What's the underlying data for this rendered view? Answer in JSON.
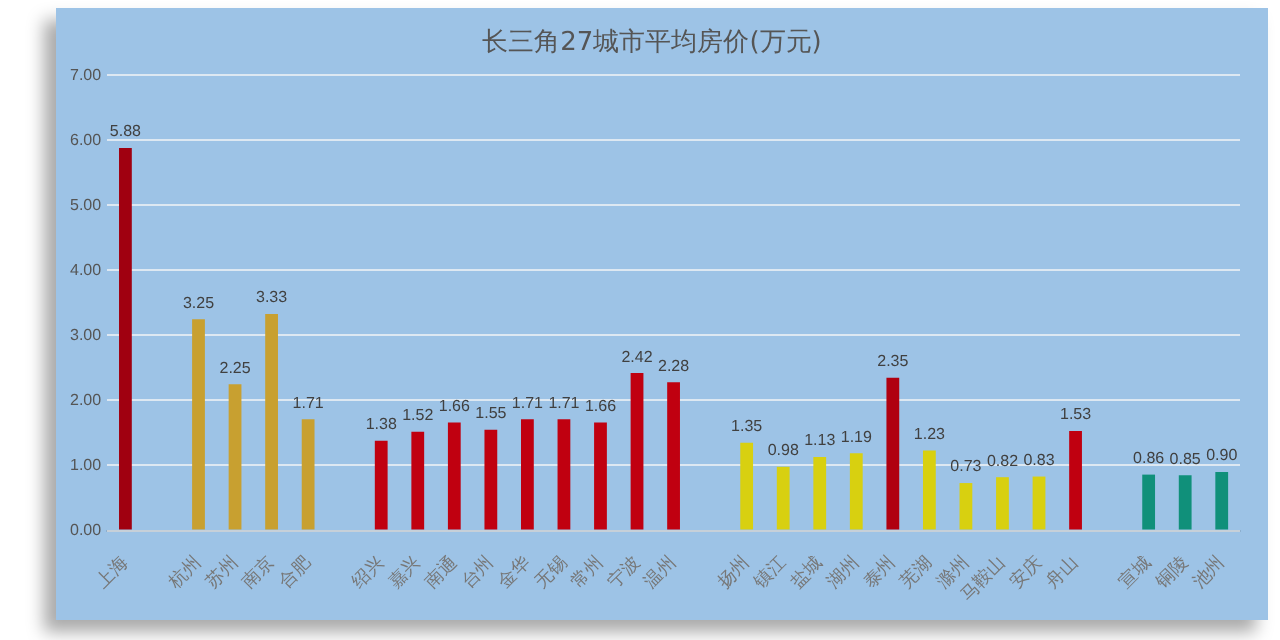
{
  "chart_data": {
    "type": "bar",
    "title": "长三角27城市平均房价(万元)",
    "categories": [
      "上海",
      null,
      "杭州",
      "苏州",
      "南京",
      "合肥",
      null,
      "绍兴",
      "嘉兴",
      "南通",
      "台州",
      "金华",
      "无锡",
      "常州",
      "宁波",
      "温州",
      null,
      "扬州",
      "镇江",
      "盐城",
      "湖州",
      "泰州",
      "芜湖",
      "滁州",
      "马鞍山",
      "安庆",
      "舟山",
      null,
      "宣城",
      "铜陵",
      "池州"
    ],
    "values": [
      5.88,
      null,
      3.25,
      2.25,
      3.33,
      1.71,
      null,
      1.38,
      1.52,
      1.66,
      1.55,
      1.71,
      1.71,
      1.66,
      2.42,
      2.28,
      null,
      1.35,
      0.98,
      1.13,
      1.19,
      2.35,
      1.23,
      0.73,
      0.82,
      0.83,
      1.53,
      null,
      0.86,
      0.85,
      0.9
    ],
    "colors": [
      "#a00010",
      null,
      "#c8a030",
      "#c8a030",
      "#c8a030",
      "#c8a030",
      null,
      "#c00010",
      "#c00010",
      "#c00010",
      "#c00010",
      "#c00010",
      "#c00010",
      "#c00010",
      "#c00010",
      "#c00010",
      null,
      "#d8d010",
      "#d8d010",
      "#d8d010",
      "#d8d010",
      "#b00010",
      "#d8d010",
      "#d8d010",
      "#d8d010",
      "#d8d010",
      "#c00010",
      null,
      "#10907a",
      "#10907a",
      "#10907a"
    ],
    "ylim": [
      0,
      7
    ],
    "yticks": [
      {
        "value": 0,
        "label": "0.00"
      },
      {
        "value": 1,
        "label": "1.00"
      },
      {
        "value": 2,
        "label": "2.00"
      },
      {
        "value": 3,
        "label": "3.00"
      },
      {
        "value": 4,
        "label": "4.00"
      },
      {
        "value": 5,
        "label": "5.00"
      },
      {
        "value": 6,
        "label": "6.00"
      },
      {
        "value": 7,
        "label": "7.00"
      }
    ],
    "value_labels": [
      "5.88",
      null,
      "3.25",
      "2.25",
      "3.33",
      "1.71",
      null,
      "1.38",
      "1.52",
      "1.66",
      "1.55",
      "1.71",
      "1.71",
      "1.66",
      "2.42",
      "2.28",
      null,
      "1.35",
      "0.98",
      "1.13",
      "1.19",
      "2.35",
      "1.23",
      "0.73",
      "0.82",
      "0.83",
      "1.53",
      null,
      "0.86",
      "0.85",
      "0.90"
    ],
    "grid": "y",
    "legend": false
  }
}
